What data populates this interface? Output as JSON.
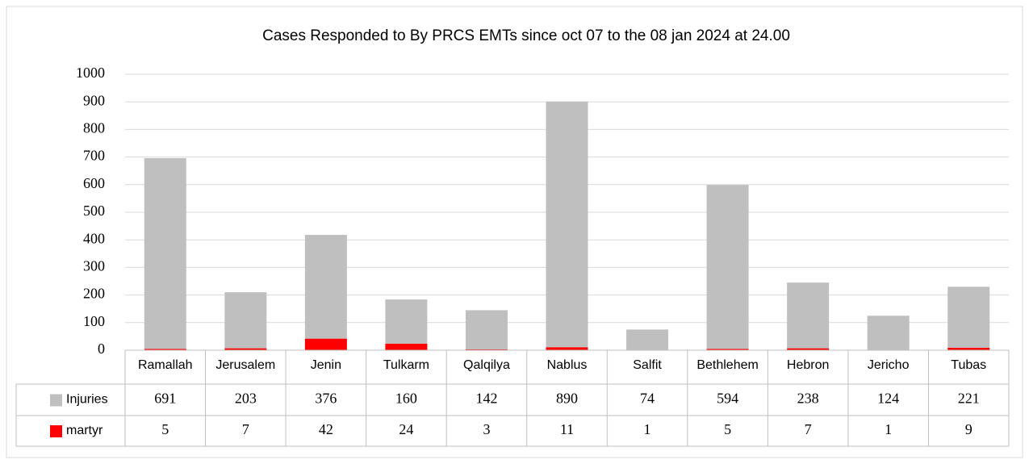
{
  "chart_data": {
    "type": "bar",
    "stacked": true,
    "title": "Cases Responded to By PRCS EMTs since oct 07 to the  08 jan 2024 at 24.00",
    "categories": [
      "Ramallah",
      "Jerusalem",
      "Jenin",
      "Tulkarm",
      "Qalqilya",
      "Nablus",
      "Salfit",
      "Bethlehem",
      "Hebron",
      "Jericho",
      "Tubas"
    ],
    "series": [
      {
        "name": "Injuries",
        "color": "#bfbfbf",
        "values": [
          691,
          203,
          376,
          160,
          142,
          890,
          74,
          594,
          238,
          124,
          221
        ]
      },
      {
        "name": "martyr",
        "color": "#ff0000",
        "values": [
          5,
          7,
          42,
          24,
          3,
          11,
          1,
          5,
          7,
          1,
          9
        ]
      }
    ],
    "ylim": [
      0,
      1000
    ],
    "yticks": [
      0,
      100,
      200,
      300,
      400,
      500,
      600,
      700,
      800,
      900,
      1000
    ],
    "grid": true,
    "data_table": true
  }
}
